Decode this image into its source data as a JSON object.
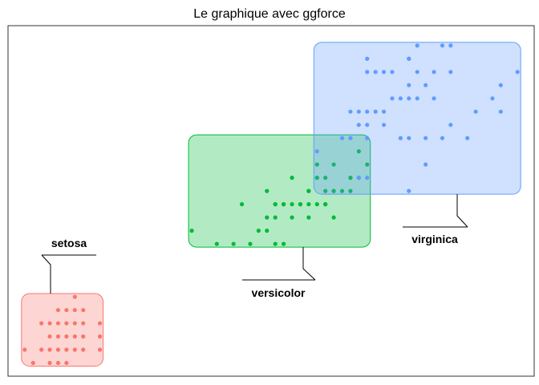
{
  "chart_data": {
    "type": "scatter",
    "title": "Le graphique avec ggforce",
    "xlabel": "",
    "ylabel": "",
    "xlim": [
      0.8,
      7.1
    ],
    "ylim": [
      0.0,
      2.65
    ],
    "grid": false,
    "legend": "none",
    "annotation": "rounded rectangles around each group with labels",
    "series": [
      {
        "name": "setosa",
        "color": "#F8766D",
        "fill": "#F8766D",
        "points": [
          [
            1.4,
            0.2
          ],
          [
            1.3,
            0.2
          ],
          [
            1.5,
            0.2
          ],
          [
            1.7,
            0.4
          ],
          [
            1.4,
            0.3
          ],
          [
            1.5,
            0.1
          ],
          [
            1.6,
            0.2
          ],
          [
            1.1,
            0.1
          ],
          [
            1.2,
            0.2
          ],
          [
            1.3,
            0.4
          ],
          [
            1.7,
            0.3
          ],
          [
            1.5,
            0.4
          ],
          [
            1.0,
            0.2
          ],
          [
            1.7,
            0.5
          ],
          [
            1.9,
            0.2
          ],
          [
            1.6,
            0.4
          ],
          [
            1.4,
            0.1
          ],
          [
            1.9,
            0.4
          ],
          [
            1.6,
            0.6
          ],
          [
            1.3,
            0.3
          ],
          [
            1.5,
            0.3
          ],
          [
            1.4,
            0.4
          ],
          [
            1.6,
            0.3
          ],
          [
            1.2,
            0.4
          ],
          [
            1.3,
            0.1
          ],
          [
            1.4,
            0.5
          ],
          [
            1.5,
            0.5
          ],
          [
            1.7,
            0.2
          ],
          [
            1.9,
            0.3
          ],
          [
            1.6,
            0.5
          ]
        ]
      },
      {
        "name": "versicolor",
        "color": "#00BA38",
        "fill": "#00BA38",
        "points": [
          [
            4.7,
            1.4
          ],
          [
            4.5,
            1.5
          ],
          [
            4.9,
            1.5
          ],
          [
            4.0,
            1.3
          ],
          [
            4.6,
            1.5
          ],
          [
            4.5,
            1.3
          ],
          [
            4.7,
            1.6
          ],
          [
            3.3,
            1.0
          ],
          [
            4.6,
            1.3
          ],
          [
            3.9,
            1.4
          ],
          [
            3.5,
            1.0
          ],
          [
            4.2,
            1.5
          ],
          [
            4.0,
            1.0
          ],
          [
            4.7,
            1.4
          ],
          [
            3.6,
            1.3
          ],
          [
            4.4,
            1.4
          ],
          [
            4.1,
            1.0
          ],
          [
            4.5,
            1.5
          ],
          [
            3.9,
            1.1
          ],
          [
            4.8,
            1.8
          ],
          [
            4.0,
            1.3
          ],
          [
            4.9,
            1.5
          ],
          [
            4.7,
            1.2
          ],
          [
            4.3,
            1.3
          ],
          [
            4.4,
            1.4
          ],
          [
            5.0,
            1.7
          ],
          [
            3.8,
            1.1
          ],
          [
            3.7,
            1.0
          ],
          [
            3.9,
            1.2
          ],
          [
            5.1,
            1.6
          ],
          [
            4.5,
            1.6
          ],
          [
            4.4,
            1.3
          ],
          [
            4.1,
            1.3
          ],
          [
            4.0,
            1.2
          ],
          [
            4.4,
            1.2
          ],
          [
            4.6,
            1.4
          ],
          [
            3.0,
            1.1
          ],
          [
            4.2,
            1.3
          ],
          [
            4.3,
            1.3
          ],
          [
            4.8,
            1.4
          ],
          [
            4.2,
            1.2
          ],
          [
            4.6,
            1.3
          ],
          [
            4.1,
            1.3
          ],
          [
            4.9,
            1.4
          ],
          [
            5.0,
            1.5
          ]
        ]
      },
      {
        "name": "virginica",
        "color": "#619CFF",
        "fill": "#619CFF",
        "points": [
          [
            6.0,
            2.5
          ],
          [
            5.1,
            1.9
          ],
          [
            5.9,
            2.1
          ],
          [
            5.6,
            1.8
          ],
          [
            5.8,
            2.2
          ],
          [
            6.6,
            2.1
          ],
          [
            4.5,
            1.7
          ],
          [
            6.3,
            1.8
          ],
          [
            5.8,
            1.8
          ],
          [
            6.1,
            2.5
          ],
          [
            5.1,
            2.0
          ],
          [
            5.3,
            1.9
          ],
          [
            5.5,
            2.1
          ],
          [
            5.0,
            2.0
          ],
          [
            5.1,
            2.4
          ],
          [
            5.3,
            2.3
          ],
          [
            5.5,
            1.8
          ],
          [
            6.7,
            2.2
          ],
          [
            6.9,
            2.3
          ],
          [
            5.0,
            1.5
          ],
          [
            5.7,
            2.3
          ],
          [
            4.9,
            2.0
          ],
          [
            6.7,
            2.0
          ],
          [
            4.9,
            1.8
          ],
          [
            5.7,
            2.1
          ],
          [
            6.0,
            1.8
          ],
          [
            4.8,
            1.8
          ],
          [
            4.9,
            1.8
          ],
          [
            5.6,
            2.1
          ],
          [
            5.8,
            1.6
          ],
          [
            6.1,
            1.9
          ],
          [
            6.4,
            2.0
          ],
          [
            5.6,
            2.2
          ],
          [
            5.1,
            1.5
          ],
          [
            5.6,
            1.4
          ],
          [
            6.1,
            2.3
          ],
          [
            5.6,
            2.4
          ],
          [
            5.5,
            1.8
          ],
          [
            4.8,
            1.8
          ],
          [
            5.4,
            2.1
          ],
          [
            5.6,
            2.4
          ],
          [
            5.1,
            2.3
          ],
          [
            5.9,
            2.3
          ],
          [
            5.7,
            2.5
          ],
          [
            5.2,
            2.3
          ],
          [
            5.0,
            1.9
          ],
          [
            5.2,
            2.0
          ],
          [
            5.4,
            2.3
          ],
          [
            5.1,
            1.8
          ],
          [
            5.3,
            2.0
          ]
        ]
      }
    ]
  }
}
